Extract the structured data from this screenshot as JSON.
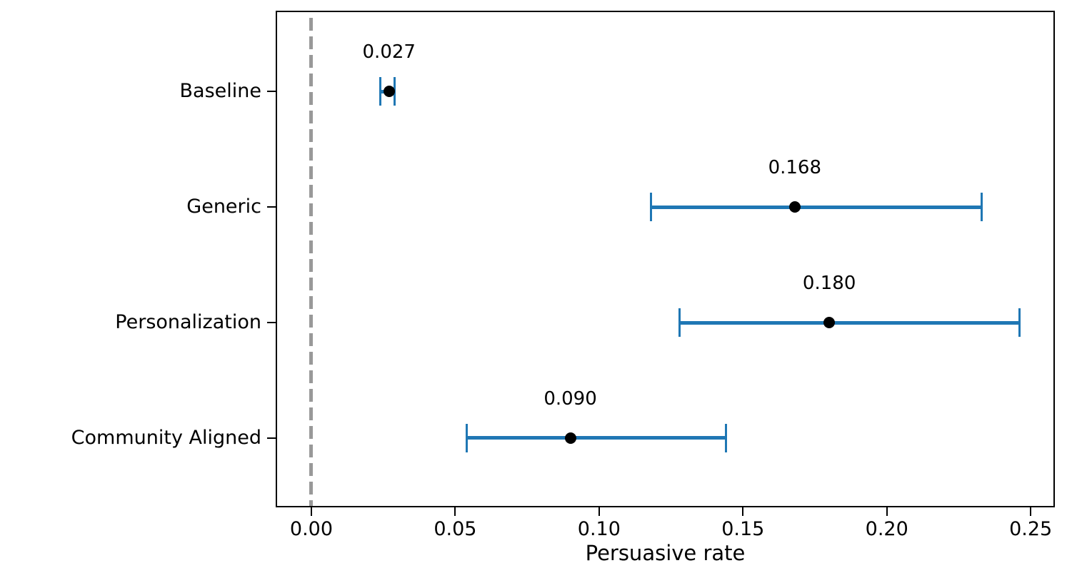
{
  "chart_data": {
    "type": "scatter",
    "subtype": "horizontal-point-plot-with-error-bars",
    "title": "",
    "xlabel": "Persuasive rate",
    "ylabel": "",
    "categories": [
      "Baseline",
      "Generic",
      "Personalization",
      "Community Aligned"
    ],
    "values": [
      0.027,
      0.168,
      0.18,
      0.09
    ],
    "value_labels": [
      "0.027",
      "0.168",
      "0.180",
      "0.090"
    ],
    "error_low": [
      0.024,
      0.118,
      0.128,
      0.054
    ],
    "error_high": [
      0.029,
      0.233,
      0.246,
      0.144
    ],
    "x_tick_labels": [
      "0.00",
      "0.05",
      "0.10",
      "0.15",
      "0.20",
      "0.25"
    ],
    "x_tick_values": [
      0.0,
      0.05,
      0.1,
      0.15,
      0.2,
      0.25
    ],
    "xlim": [
      -0.0124,
      0.2584
    ],
    "reference_line_x": 0,
    "grid": false,
    "legend": null,
    "colors": {
      "errorbar": "#1f77b4",
      "point": "#000000",
      "reference_line": "#999999",
      "text": "#000000",
      "background": "#ffffff"
    }
  }
}
